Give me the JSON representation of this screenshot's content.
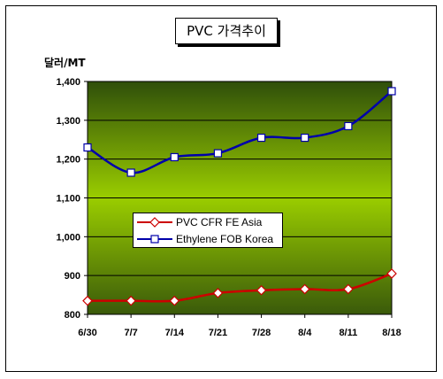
{
  "title": "PVC 가격추이",
  "unit_label": "달러/MT",
  "chart_data": {
    "type": "line",
    "title": "PVC 가격추이",
    "ylabel": "달러/MT",
    "xlabel": "",
    "categories": [
      "6/30",
      "7/7",
      "7/14",
      "7/21",
      "7/28",
      "8/4",
      "8/11",
      "8/18"
    ],
    "y_ticks": [
      "800",
      "900",
      "1,000",
      "1,100",
      "1,200",
      "1,300",
      "1,400"
    ],
    "ylim": [
      800,
      1400
    ],
    "grid": "horizontal",
    "legend_position": "center-left",
    "series": [
      {
        "name": "PVC CFR FE Asia",
        "color": "#cc0000",
        "marker": "diamond",
        "values": [
          835,
          835,
          835,
          855,
          862,
          865,
          865,
          905
        ]
      },
      {
        "name": "Ethylene FOB Korea",
        "color": "#0000aa",
        "marker": "square",
        "values": [
          1230,
          1165,
          1205,
          1215,
          1255,
          1255,
          1285,
          1375
        ]
      }
    ],
    "colors": {
      "plot_bg_top": "#2f4f0a",
      "plot_bg_mid": "#9acd00",
      "plot_bg_bottom": "#3a5a0a"
    }
  }
}
